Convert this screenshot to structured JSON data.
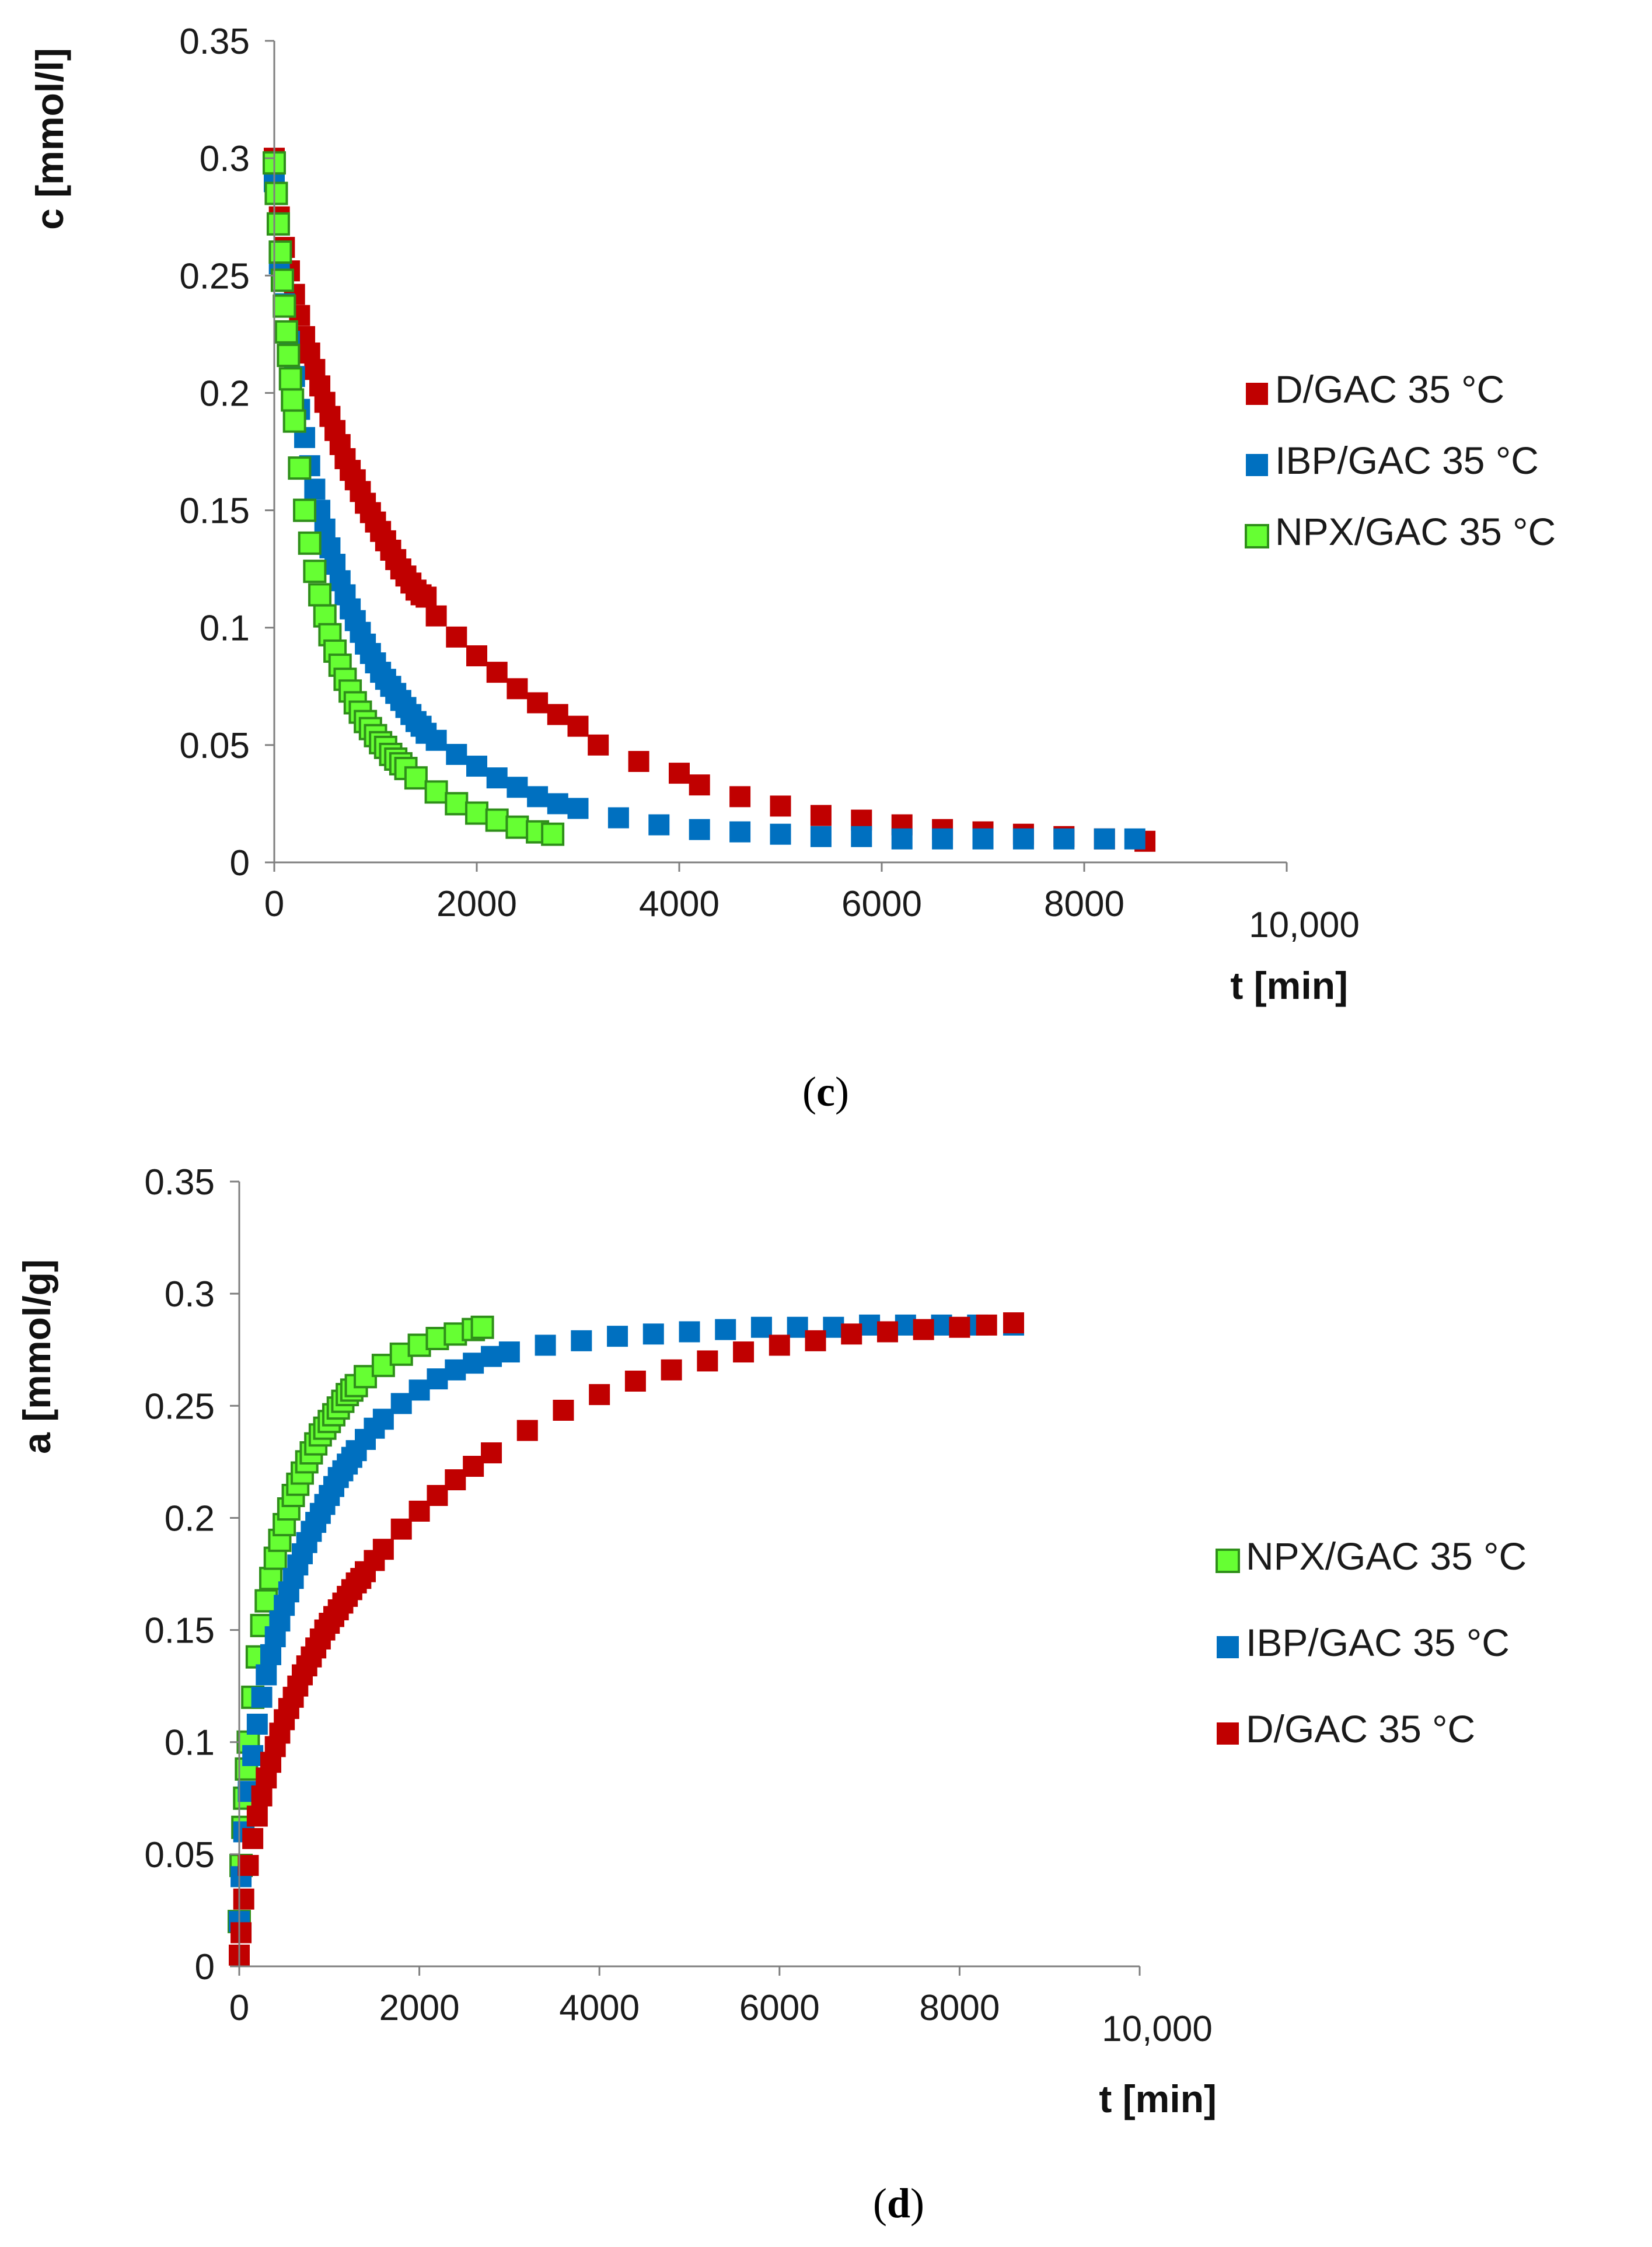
{
  "chart_data": [
    {
      "type": "scatter",
      "panel_label": "c",
      "xlabel": "t [min]",
      "ylabel": "c [mmol/l]",
      "xlim": [
        0,
        10000
      ],
      "ylim": [
        0,
        0.35
      ],
      "x_ticks": [
        "0",
        "2000",
        "4000",
        "6000",
        "8000",
        "10,000"
      ],
      "y_ticks": [
        "0",
        "0.05",
        "0.1",
        "0.15",
        "0.2",
        "0.25",
        "0.3",
        "0.35"
      ],
      "grid": false,
      "legend_position": "right",
      "series": [
        {
          "name": "D/GAC 35 °C",
          "color": "#c00000",
          "marker": "filled-square",
          "x": [
            0,
            50,
            100,
            150,
            200,
            250,
            300,
            350,
            400,
            450,
            500,
            550,
            600,
            650,
            700,
            750,
            800,
            850,
            900,
            950,
            1000,
            1050,
            1100,
            1150,
            1200,
            1250,
            1300,
            1350,
            1400,
            1450,
            1500,
            1600,
            1800,
            2000,
            2200,
            2400,
            2600,
            2800,
            3000,
            3200,
            3600,
            4000,
            4200,
            4600,
            5000,
            5400,
            5800,
            6200,
            6600,
            7000,
            7400,
            7800,
            8200,
            8600
          ],
          "y": [
            0.3,
            0.275,
            0.262,
            0.252,
            0.242,
            0.233,
            0.224,
            0.217,
            0.21,
            0.203,
            0.196,
            0.19,
            0.184,
            0.178,
            0.172,
            0.167,
            0.163,
            0.158,
            0.153,
            0.149,
            0.145,
            0.141,
            0.137,
            0.133,
            0.129,
            0.125,
            0.122,
            0.119,
            0.116,
            0.114,
            0.113,
            0.105,
            0.096,
            0.088,
            0.081,
            0.074,
            0.068,
            0.063,
            0.058,
            0.05,
            0.043,
            0.038,
            0.033,
            0.028,
            0.024,
            0.02,
            0.018,
            0.016,
            0.014,
            0.013,
            0.012,
            0.011,
            0.01,
            0.009
          ]
        },
        {
          "name": "IBP/GAC 35 °C",
          "color": "#0070c0",
          "marker": "filled-square",
          "x": [
            0,
            50,
            100,
            150,
            200,
            250,
            300,
            350,
            400,
            450,
            500,
            550,
            600,
            650,
            700,
            750,
            800,
            850,
            900,
            950,
            1000,
            1050,
            1100,
            1150,
            1200,
            1250,
            1300,
            1350,
            1400,
            1450,
            1500,
            1600,
            1800,
            2000,
            2200,
            2400,
            2600,
            2800,
            3000,
            3400,
            3800,
            4200,
            4600,
            5000,
            5400,
            5800,
            6200,
            6600,
            7000,
            7400,
            7800,
            8200,
            8500
          ],
          "y": [
            0.29,
            0.255,
            0.238,
            0.222,
            0.207,
            0.193,
            0.181,
            0.169,
            0.159,
            0.15,
            0.142,
            0.134,
            0.127,
            0.12,
            0.114,
            0.108,
            0.103,
            0.098,
            0.093,
            0.089,
            0.085,
            0.081,
            0.078,
            0.075,
            0.072,
            0.069,
            0.066,
            0.063,
            0.06,
            0.058,
            0.055,
            0.052,
            0.046,
            0.041,
            0.036,
            0.032,
            0.028,
            0.025,
            0.023,
            0.019,
            0.016,
            0.014,
            0.013,
            0.012,
            0.011,
            0.011,
            0.01,
            0.01,
            0.01,
            0.01,
            0.01,
            0.01,
            0.01
          ]
        },
        {
          "name": "NPX/GAC 35 °C",
          "color": "#66ff33",
          "marker": "open-square",
          "x": [
            0,
            20,
            40,
            60,
            80,
            100,
            120,
            140,
            160,
            180,
            200,
            250,
            300,
            350,
            400,
            450,
            500,
            550,
            600,
            650,
            700,
            750,
            800,
            850,
            900,
            950,
            1000,
            1050,
            1100,
            1150,
            1200,
            1250,
            1300,
            1400,
            1600,
            1800,
            2000,
            2200,
            2400,
            2600,
            2750
          ],
          "y": [
            0.298,
            0.285,
            0.272,
            0.26,
            0.248,
            0.237,
            0.226,
            0.216,
            0.206,
            0.197,
            0.188,
            0.168,
            0.15,
            0.136,
            0.124,
            0.114,
            0.105,
            0.097,
            0.09,
            0.084,
            0.078,
            0.073,
            0.068,
            0.064,
            0.06,
            0.057,
            0.054,
            0.051,
            0.049,
            0.046,
            0.044,
            0.042,
            0.04,
            0.036,
            0.03,
            0.025,
            0.021,
            0.018,
            0.015,
            0.013,
            0.012
          ]
        }
      ]
    },
    {
      "type": "scatter",
      "panel_label": "d",
      "xlabel": "t [min]",
      "ylabel": "a [mmol/g]",
      "xlim": [
        0,
        10000
      ],
      "ylim": [
        0,
        0.35
      ],
      "x_ticks": [
        "0",
        "2000",
        "4000",
        "6000",
        "8000",
        "10,000"
      ],
      "y_ticks": [
        "0",
        "0.05",
        "0.1",
        "0.15",
        "0.2",
        "0.25",
        "0.3",
        "0.35"
      ],
      "grid": false,
      "legend_position": "right",
      "series": [
        {
          "name": "NPX/GAC 35 °C",
          "color": "#66ff33",
          "marker": "open-square",
          "x": [
            0,
            20,
            40,
            60,
            80,
            100,
            150,
            200,
            250,
            300,
            350,
            400,
            450,
            500,
            550,
            600,
            650,
            700,
            750,
            800,
            850,
            900,
            950,
            1000,
            1050,
            1100,
            1150,
            1200,
            1250,
            1300,
            1400,
            1600,
            1800,
            2000,
            2200,
            2400,
            2600,
            2700
          ],
          "y": [
            0.02,
            0.045,
            0.062,
            0.075,
            0.088,
            0.1,
            0.12,
            0.138,
            0.152,
            0.163,
            0.173,
            0.182,
            0.19,
            0.197,
            0.204,
            0.21,
            0.215,
            0.22,
            0.225,
            0.229,
            0.233,
            0.237,
            0.24,
            0.243,
            0.246,
            0.249,
            0.252,
            0.255,
            0.257,
            0.259,
            0.263,
            0.268,
            0.273,
            0.277,
            0.28,
            0.282,
            0.284,
            0.285
          ]
        },
        {
          "name": "IBP/GAC 35 °C",
          "color": "#0070c0",
          "marker": "filled-square",
          "x": [
            0,
            20,
            50,
            100,
            150,
            200,
            250,
            300,
            350,
            400,
            450,
            500,
            550,
            600,
            650,
            700,
            750,
            800,
            850,
            900,
            950,
            1000,
            1050,
            1100,
            1150,
            1200,
            1250,
            1300,
            1400,
            1500,
            1600,
            1800,
            2000,
            2200,
            2400,
            2600,
            2800,
            3000,
            3400,
            3800,
            4200,
            4600,
            5000,
            5400,
            5800,
            6200,
            6600,
            7000,
            7400,
            7800,
            8200,
            8600
          ],
          "y": [
            0.02,
            0.04,
            0.06,
            0.078,
            0.094,
            0.108,
            0.12,
            0.13,
            0.139,
            0.147,
            0.154,
            0.161,
            0.167,
            0.173,
            0.179,
            0.184,
            0.189,
            0.194,
            0.198,
            0.202,
            0.206,
            0.21,
            0.214,
            0.218,
            0.221,
            0.224,
            0.227,
            0.23,
            0.235,
            0.24,
            0.244,
            0.251,
            0.257,
            0.262,
            0.266,
            0.269,
            0.272,
            0.274,
            0.277,
            0.279,
            0.281,
            0.282,
            0.283,
            0.284,
            0.285,
            0.285,
            0.285,
            0.286,
            0.286,
            0.286,
            0.286,
            0.286
          ]
        },
        {
          "name": "D/GAC 35 °C",
          "color": "#c00000",
          "marker": "filled-square",
          "x": [
            0,
            20,
            50,
            100,
            150,
            200,
            250,
            300,
            350,
            400,
            450,
            500,
            550,
            600,
            650,
            700,
            750,
            800,
            850,
            900,
            950,
            1000,
            1050,
            1100,
            1150,
            1200,
            1250,
            1300,
            1350,
            1400,
            1500,
            1600,
            1800,
            2000,
            2200,
            2400,
            2600,
            2800,
            3200,
            3600,
            4000,
            4400,
            4800,
            5200,
            5600,
            6000,
            6400,
            6800,
            7200,
            7600,
            8000,
            8300,
            8600
          ],
          "y": [
            0.005,
            0.015,
            0.03,
            0.045,
            0.057,
            0.067,
            0.076,
            0.084,
            0.091,
            0.098,
            0.104,
            0.11,
            0.115,
            0.12,
            0.125,
            0.13,
            0.134,
            0.138,
            0.142,
            0.146,
            0.15,
            0.153,
            0.156,
            0.159,
            0.162,
            0.165,
            0.168,
            0.171,
            0.173,
            0.176,
            0.181,
            0.186,
            0.195,
            0.203,
            0.21,
            0.217,
            0.223,
            0.229,
            0.239,
            0.248,
            0.255,
            0.261,
            0.266,
            0.27,
            0.274,
            0.277,
            0.279,
            0.282,
            0.283,
            0.284,
            0.285,
            0.286,
            0.287
          ]
        }
      ]
    }
  ]
}
